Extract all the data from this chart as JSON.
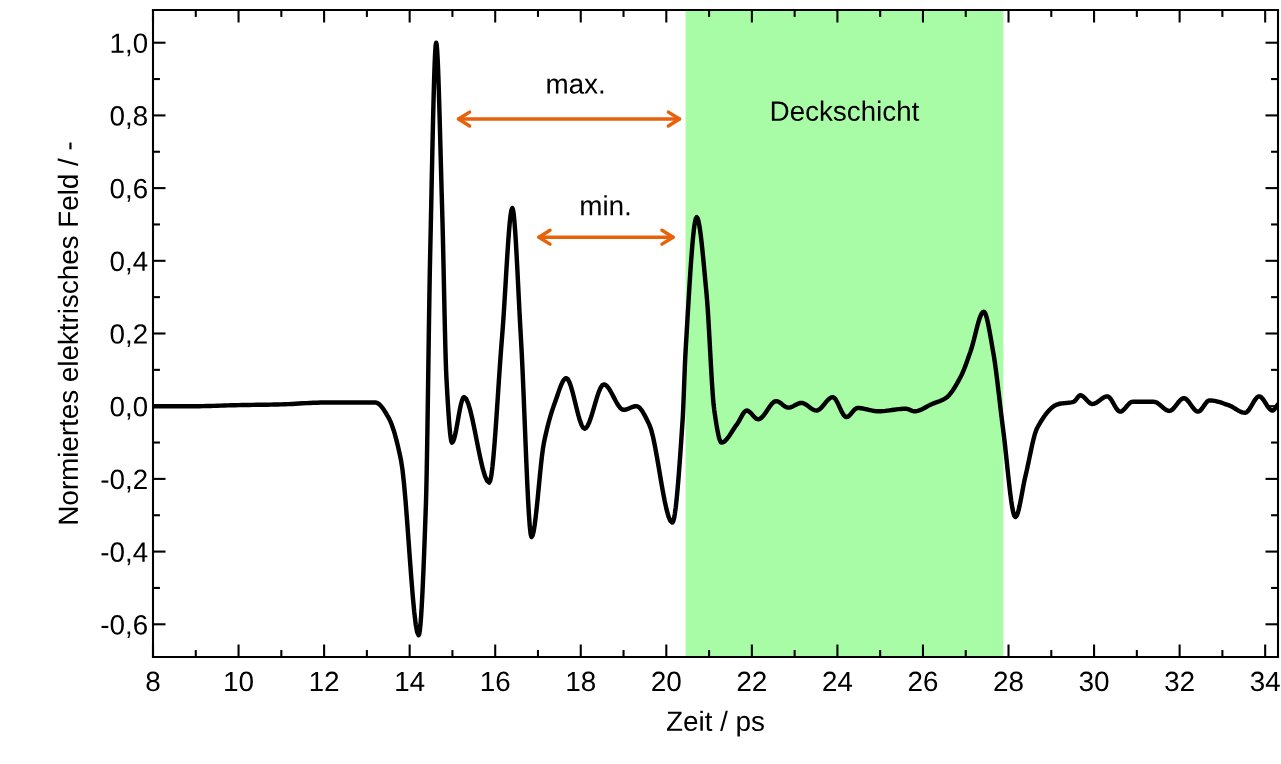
{
  "chart_data": {
    "type": "line",
    "xlabel": "Zeit / ps",
    "ylabel": "Normiertes elektrisches Feld / -",
    "x": [
      8.0,
      9.0,
      10.0,
      11.0,
      12.0,
      12.8,
      13.2,
      13.5,
      13.8,
      14.21,
      14.38,
      14.48,
      14.62,
      14.76,
      14.86,
      14.99,
      15.27,
      15.86,
      16.16,
      16.4,
      16.6,
      16.85,
      17.14,
      17.39,
      17.66,
      18.09,
      18.54,
      19.0,
      19.3,
      19.6,
      20.14,
      20.38,
      20.45,
      20.71,
      20.94,
      21.12,
      21.29,
      21.65,
      21.88,
      22.15,
      22.57,
      22.85,
      23.16,
      23.51,
      23.89,
      24.21,
      24.47,
      24.96,
      25.59,
      25.81,
      26.21,
      26.53,
      26.89,
      27.11,
      27.42,
      27.64,
      27.87,
      28.16,
      28.4,
      28.67,
      29.17,
      29.52,
      29.68,
      29.96,
      30.31,
      30.61,
      30.9,
      31.4,
      31.76,
      32.1,
      32.43,
      32.7,
      33.14,
      33.53,
      33.86,
      34.17,
      34.3
    ],
    "series": [
      {
        "color": "#000000",
        "values": [
          0.0,
          0.0,
          0.003,
          0.005,
          0.01,
          0.01,
          0.01,
          -0.03,
          -0.15,
          -0.63,
          -0.27,
          0.42,
          1.0,
          0.54,
          0.077,
          -0.1,
          0.025,
          -0.21,
          0.19,
          0.545,
          0.19,
          -0.36,
          -0.1,
          0.008,
          0.077,
          -0.062,
          0.06,
          -0.01,
          0.0,
          -0.05,
          -0.32,
          -0.04,
          0.15,
          0.52,
          0.31,
          -0.01,
          -0.1,
          -0.05,
          -0.012,
          -0.036,
          0.014,
          -0.004,
          0.009,
          -0.012,
          0.025,
          -0.03,
          -0.005,
          -0.014,
          -0.007,
          -0.014,
          0.006,
          0.022,
          0.083,
          0.15,
          0.26,
          0.15,
          -0.06,
          -0.305,
          -0.19,
          -0.06,
          0.006,
          0.012,
          0.03,
          0.006,
          0.027,
          -0.015,
          0.012,
          0.012,
          -0.013,
          0.022,
          -0.015,
          0.016,
          0.003,
          -0.018,
          0.027,
          -0.012,
          0.005
        ]
      }
    ],
    "xlim": [
      8,
      34.3
    ],
    "ylim": [
      -0.69,
      1.09
    ],
    "xticks": [
      8,
      10,
      12,
      14,
      16,
      18,
      20,
      22,
      24,
      26,
      28,
      30,
      32,
      34
    ],
    "yticks": [
      {
        "value": -0.6,
        "label": "-0,6"
      },
      {
        "value": -0.4,
        "label": "-0,4"
      },
      {
        "value": -0.2,
        "label": "-0,2"
      },
      {
        "value": 0.0,
        "label": "0,0"
      },
      {
        "value": 0.2,
        "label": "0,2"
      },
      {
        "value": 0.4,
        "label": "0,4"
      },
      {
        "value": 0.6,
        "label": "0,6"
      },
      {
        "value": 0.8,
        "label": "0,8"
      },
      {
        "value": 1.0,
        "label": "1,0"
      }
    ],
    "bands": [
      {
        "axis": "x",
        "from": 20.45,
        "to": 27.88,
        "label": "Deckschicht",
        "color": "#63f95d"
      }
    ],
    "annotations": [
      "max.",
      "min."
    ],
    "grid": false,
    "legend": false,
    "marker": "none",
    "line_style": "solid"
  }
}
